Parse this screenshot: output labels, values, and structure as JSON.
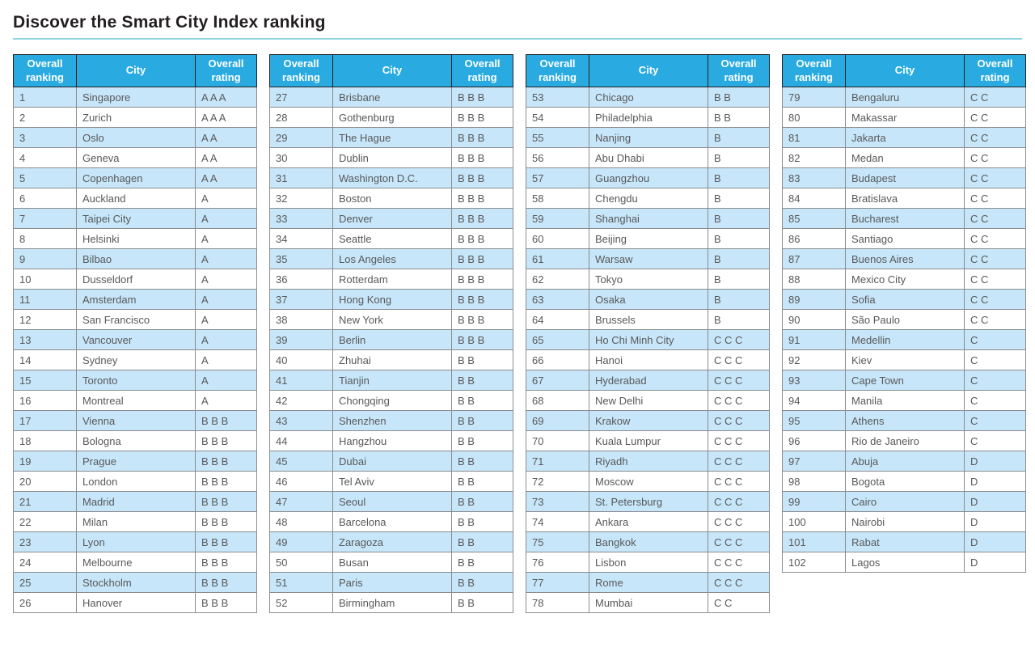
{
  "page": {
    "title": "Discover the Smart City Index ranking"
  },
  "colors": {
    "header_bg": "#29abe2",
    "row_alt_bg": "#c7e6f9",
    "title_rule": "#90d5e0",
    "cell_border": "#8a8c8f",
    "header_border": "#231f20",
    "body_text": "#58595b",
    "title_text": "#231f20"
  },
  "column_headers": [
    "Overall ranking",
    "City",
    "Overall rating"
  ],
  "tables": [
    {
      "rows": [
        [
          "1",
          "Singapore",
          "A A A"
        ],
        [
          "2",
          "Zurich",
          "A A A"
        ],
        [
          "3",
          "Oslo",
          "A A"
        ],
        [
          "4",
          "Geneva",
          "A A"
        ],
        [
          "5",
          "Copenhagen",
          "A A"
        ],
        [
          "6",
          "Auckland",
          "A"
        ],
        [
          "7",
          "Taipei City",
          "A"
        ],
        [
          "8",
          "Helsinki",
          "A"
        ],
        [
          "9",
          "Bilbao",
          "A"
        ],
        [
          "10",
          "Dusseldorf",
          "A"
        ],
        [
          "11",
          "Amsterdam",
          "A"
        ],
        [
          "12",
          "San Francisco",
          "A"
        ],
        [
          "13",
          "Vancouver",
          "A"
        ],
        [
          "14",
          "Sydney",
          "A"
        ],
        [
          "15",
          "Toronto",
          "A"
        ],
        [
          "16",
          "Montreal",
          "A"
        ],
        [
          "17",
          "Vienna",
          "B B B"
        ],
        [
          "18",
          "Bologna",
          "B B B"
        ],
        [
          "19",
          "Prague",
          "B B B"
        ],
        [
          "20",
          "London",
          "B B B"
        ],
        [
          "21",
          "Madrid",
          "B B B"
        ],
        [
          "22",
          "Milan",
          "B B B"
        ],
        [
          "23",
          "Lyon",
          "B B B"
        ],
        [
          "24",
          "Melbourne",
          "B B B"
        ],
        [
          "25",
          "Stockholm",
          "B B B"
        ],
        [
          "26",
          "Hanover",
          "B B B"
        ]
      ]
    },
    {
      "rows": [
        [
          "27",
          "Brisbane",
          "B B B"
        ],
        [
          "28",
          "Gothenburg",
          "B B B"
        ],
        [
          "29",
          "The Hague",
          "B B B"
        ],
        [
          "30",
          "Dublin",
          "B B B"
        ],
        [
          "31",
          "Washington D.C.",
          "B B B"
        ],
        [
          "32",
          "Boston",
          "B B B"
        ],
        [
          "33",
          "Denver",
          "B B B"
        ],
        [
          "34",
          "Seattle",
          "B B B"
        ],
        [
          "35",
          "Los Angeles",
          "B B B"
        ],
        [
          "36",
          "Rotterdam",
          "B B B"
        ],
        [
          "37",
          "Hong Kong",
          "B B B"
        ],
        [
          "38",
          "New York",
          "B B B"
        ],
        [
          "39",
          "Berlin",
          "B B B"
        ],
        [
          "40",
          "Zhuhai",
          "B B"
        ],
        [
          "41",
          "Tianjin",
          "B B"
        ],
        [
          "42",
          "Chongqing",
          "B B"
        ],
        [
          "43",
          "Shenzhen",
          "B B"
        ],
        [
          "44",
          "Hangzhou",
          "B B"
        ],
        [
          "45",
          "Dubai",
          "B B"
        ],
        [
          "46",
          "Tel Aviv",
          "B B"
        ],
        [
          "47",
          "Seoul",
          "B B"
        ],
        [
          "48",
          "Barcelona",
          "B B"
        ],
        [
          "49",
          "Zaragoza",
          "B B"
        ],
        [
          "50",
          "Busan",
          "B B"
        ],
        [
          "51",
          "Paris",
          "B B"
        ],
        [
          "52",
          "Birmingham",
          "B B"
        ]
      ]
    },
    {
      "rows": [
        [
          "53",
          "Chicago",
          "B B"
        ],
        [
          "54",
          "Philadelphia",
          "B B"
        ],
        [
          "55",
          "Nanjing",
          "B"
        ],
        [
          "56",
          "Abu Dhabi",
          "B"
        ],
        [
          "57",
          "Guangzhou",
          "B"
        ],
        [
          "58",
          "Chengdu",
          "B"
        ],
        [
          "59",
          "Shanghai",
          "B"
        ],
        [
          "60",
          "Beijing",
          "B"
        ],
        [
          "61",
          "Warsaw",
          "B"
        ],
        [
          "62",
          "Tokyo",
          "B"
        ],
        [
          "63",
          "Osaka",
          "B"
        ],
        [
          "64",
          "Brussels",
          "B"
        ],
        [
          "65",
          "Ho Chi Minh City",
          "C C C"
        ],
        [
          "66",
          "Hanoi",
          "C C C"
        ],
        [
          "67",
          "Hyderabad",
          "C C C"
        ],
        [
          "68",
          "New Delhi",
          "C C C"
        ],
        [
          "69",
          "Krakow",
          "C C C"
        ],
        [
          "70",
          "Kuala Lumpur",
          "C C C"
        ],
        [
          "71",
          "Riyadh",
          "C C C"
        ],
        [
          "72",
          "Moscow",
          "C C C"
        ],
        [
          "73",
          "St. Petersburg",
          "C C C"
        ],
        [
          "74",
          "Ankara",
          "C C C"
        ],
        [
          "75",
          "Bangkok",
          "C C C"
        ],
        [
          "76",
          "Lisbon",
          "C C C"
        ],
        [
          "77",
          "Rome",
          "C C C"
        ],
        [
          "78",
          "Mumbai",
          "C C"
        ]
      ]
    },
    {
      "rows": [
        [
          "79",
          "Bengaluru",
          "C C"
        ],
        [
          "80",
          "Makassar",
          "C C"
        ],
        [
          "81",
          "Jakarta",
          "C C"
        ],
        [
          "82",
          "Medan",
          "C C"
        ],
        [
          "83",
          "Budapest",
          "C C"
        ],
        [
          "84",
          "Bratislava",
          "C C"
        ],
        [
          "85",
          "Bucharest",
          "C C"
        ],
        [
          "86",
          "Santiago",
          "C C"
        ],
        [
          "87",
          "Buenos Aires",
          "C C"
        ],
        [
          "88",
          "Mexico City",
          "C C"
        ],
        [
          "89",
          "Sofia",
          "C C"
        ],
        [
          "90",
          "São Paulo",
          "C C"
        ],
        [
          "91",
          "Medellin",
          "C"
        ],
        [
          "92",
          "Kiev",
          "C"
        ],
        [
          "93",
          "Cape Town",
          "C"
        ],
        [
          "94",
          "Manila",
          "C"
        ],
        [
          "95",
          "Athens",
          "C"
        ],
        [
          "96",
          "Rio de Janeiro",
          "C"
        ],
        [
          "97",
          "Abuja",
          "D"
        ],
        [
          "98",
          "Bogota",
          "D"
        ],
        [
          "99",
          "Cairo",
          "D"
        ],
        [
          "100",
          "Nairobi",
          "D"
        ],
        [
          "101",
          "Rabat",
          "D"
        ],
        [
          "102",
          "Lagos",
          "D"
        ]
      ]
    }
  ]
}
